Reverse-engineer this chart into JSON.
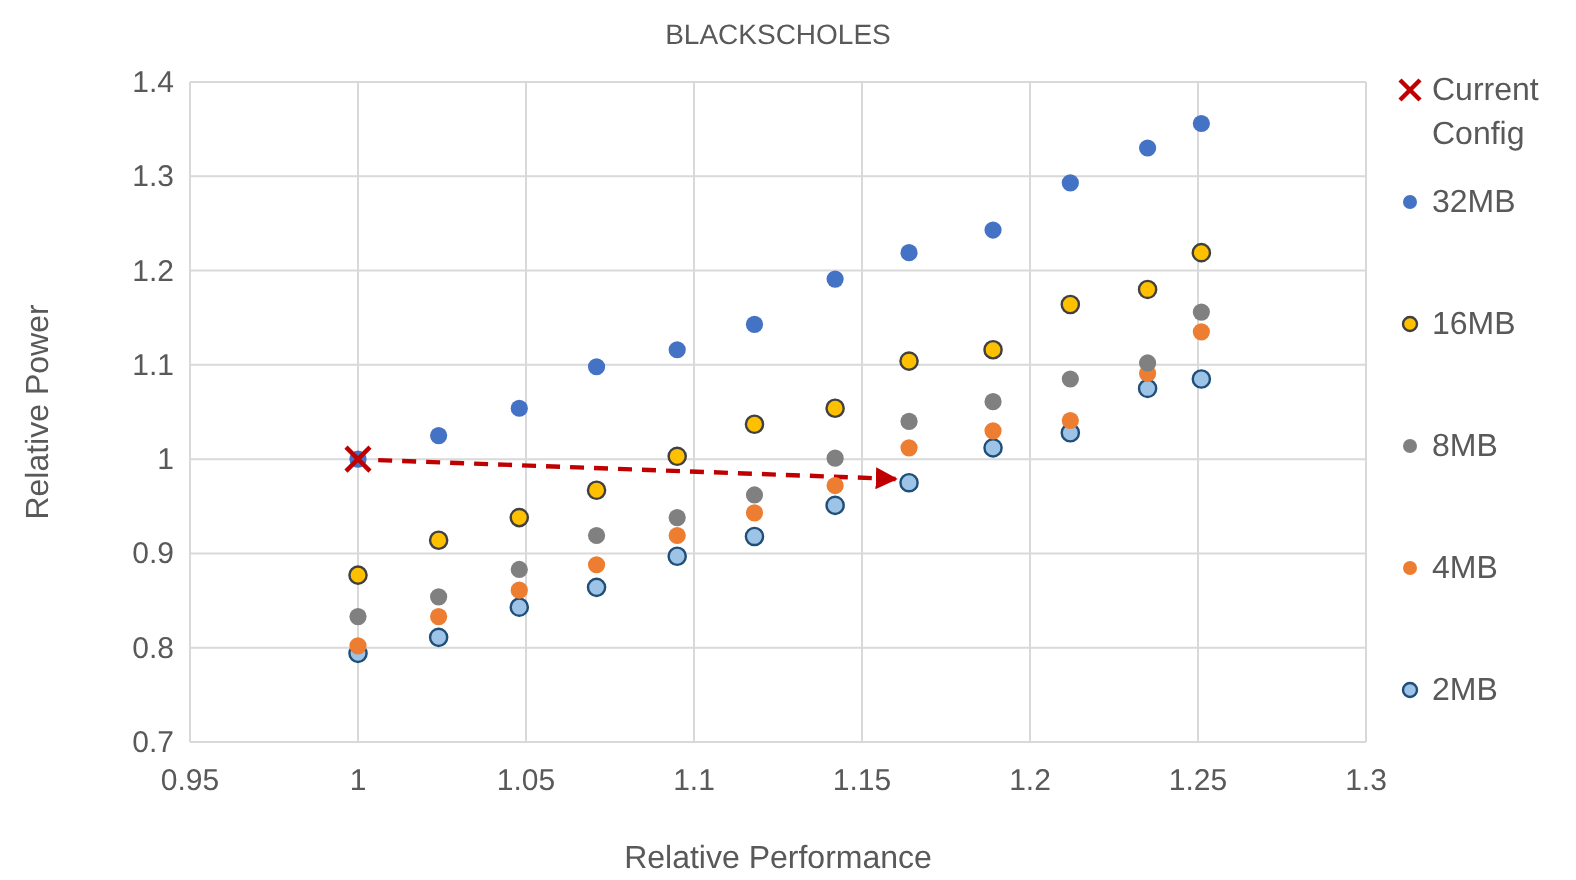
{
  "chart_data": {
    "type": "scatter",
    "title": "BLACKSCHOLES",
    "xlabel": "Relative Performance",
    "ylabel": "Relative Power",
    "xlim": [
      0.95,
      1.3
    ],
    "xticks": [
      0.95,
      1,
      1.05,
      1.1,
      1.15,
      1.2,
      1.25,
      1.3
    ],
    "ylim": [
      0.7,
      1.4
    ],
    "yticks": [
      0.7,
      0.8,
      0.9,
      1,
      1.1,
      1.2,
      1.3,
      1.4
    ],
    "grid": true,
    "legend": "right",
    "marker": "circle",
    "series": [
      {
        "name": "Current Config",
        "color": "#c00000",
        "marker": "cross",
        "x": [
          1
        ],
        "values": [
          1
        ]
      },
      {
        "name": "32MB",
        "color": "#4472c4",
        "x": [
          1,
          1.024,
          1.048,
          1.071,
          1.095,
          1.118,
          1.142,
          1.164,
          1.189,
          1.212,
          1.235,
          1.251
        ],
        "values": [
          1,
          1.025,
          1.054,
          1.098,
          1.116,
          1.143,
          1.191,
          1.219,
          1.243,
          1.293,
          1.33,
          1.356
        ]
      },
      {
        "name": "16MB",
        "color": "#ffc000",
        "x": [
          1,
          1.024,
          1.048,
          1.071,
          1.095,
          1.118,
          1.142,
          1.164,
          1.189,
          1.212,
          1.235,
          1.251
        ],
        "values": [
          0.877,
          0.914,
          0.938,
          0.967,
          1.003,
          1.037,
          1.054,
          1.104,
          1.116,
          1.164,
          1.18,
          1.219
        ]
      },
      {
        "name": "8MB",
        "color": "#808080",
        "x": [
          1,
          1.024,
          1.048,
          1.071,
          1.095,
          1.118,
          1.142,
          1.164,
          1.189,
          1.212,
          1.235,
          1.251
        ],
        "values": [
          0.833,
          0.854,
          0.883,
          0.919,
          0.938,
          0.962,
          1.001,
          1.04,
          1.061,
          1.085,
          1.102,
          1.156
        ]
      },
      {
        "name": "4MB",
        "color": "#ed7d31",
        "x": [
          1,
          1.024,
          1.048,
          1.071,
          1.095,
          1.118,
          1.142,
          1.164,
          1.189,
          1.212,
          1.235,
          1.251
        ],
        "values": [
          0.802,
          0.833,
          0.861,
          0.888,
          0.919,
          0.943,
          0.972,
          1.012,
          1.03,
          1.041,
          1.091,
          1.135
        ]
      },
      {
        "name": "2MB",
        "color": "#9dc3e6",
        "x": [
          1,
          1.024,
          1.048,
          1.071,
          1.095,
          1.118,
          1.142,
          1.164,
          1.189,
          1.212,
          1.235,
          1.251
        ],
        "values": [
          0.794,
          0.811,
          0.843,
          0.864,
          0.897,
          0.918,
          0.951,
          0.975,
          1.012,
          1.028,
          1.075,
          1.085
        ]
      },
      {
        "type": "line",
        "color": "#c00000",
        "line_style": "dashed",
        "marker": "none",
        "x": [
          1.006,
          1.16
        ],
        "values": [
          0.999,
          0.979
        ]
      }
    ]
  }
}
